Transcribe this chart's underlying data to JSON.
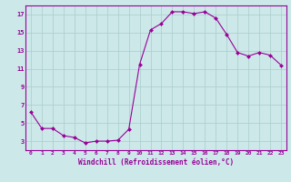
{
  "x": [
    0,
    1,
    2,
    3,
    4,
    5,
    6,
    7,
    8,
    9,
    10,
    11,
    12,
    13,
    14,
    15,
    16,
    17,
    18,
    19,
    20,
    21,
    22,
    23
  ],
  "y": [
    6.2,
    4.4,
    4.4,
    3.6,
    3.4,
    2.8,
    3.0,
    3.0,
    3.1,
    4.3,
    11.5,
    15.3,
    16.0,
    17.3,
    17.3,
    17.1,
    17.3,
    16.6,
    14.8,
    12.8,
    12.4,
    12.8,
    12.5,
    11.4
  ],
  "line_color": "#990099",
  "marker": "D",
  "marker_size": 2.0,
  "bg_color": "#cce8e8",
  "grid_color": "#aacccc",
  "xlabel": "Windchill (Refroidissement éolien,°C)",
  "xlim": [
    -0.5,
    23.5
  ],
  "ylim": [
    2.0,
    18.0
  ],
  "yticks": [
    3,
    5,
    7,
    9,
    11,
    13,
    15,
    17
  ],
  "xticks": [
    0,
    1,
    2,
    3,
    4,
    5,
    6,
    7,
    8,
    9,
    10,
    11,
    12,
    13,
    14,
    15,
    16,
    17,
    18,
    19,
    20,
    21,
    22,
    23
  ],
  "label_color": "#990099",
  "tick_color": "#990099",
  "spine_color": "#990099"
}
